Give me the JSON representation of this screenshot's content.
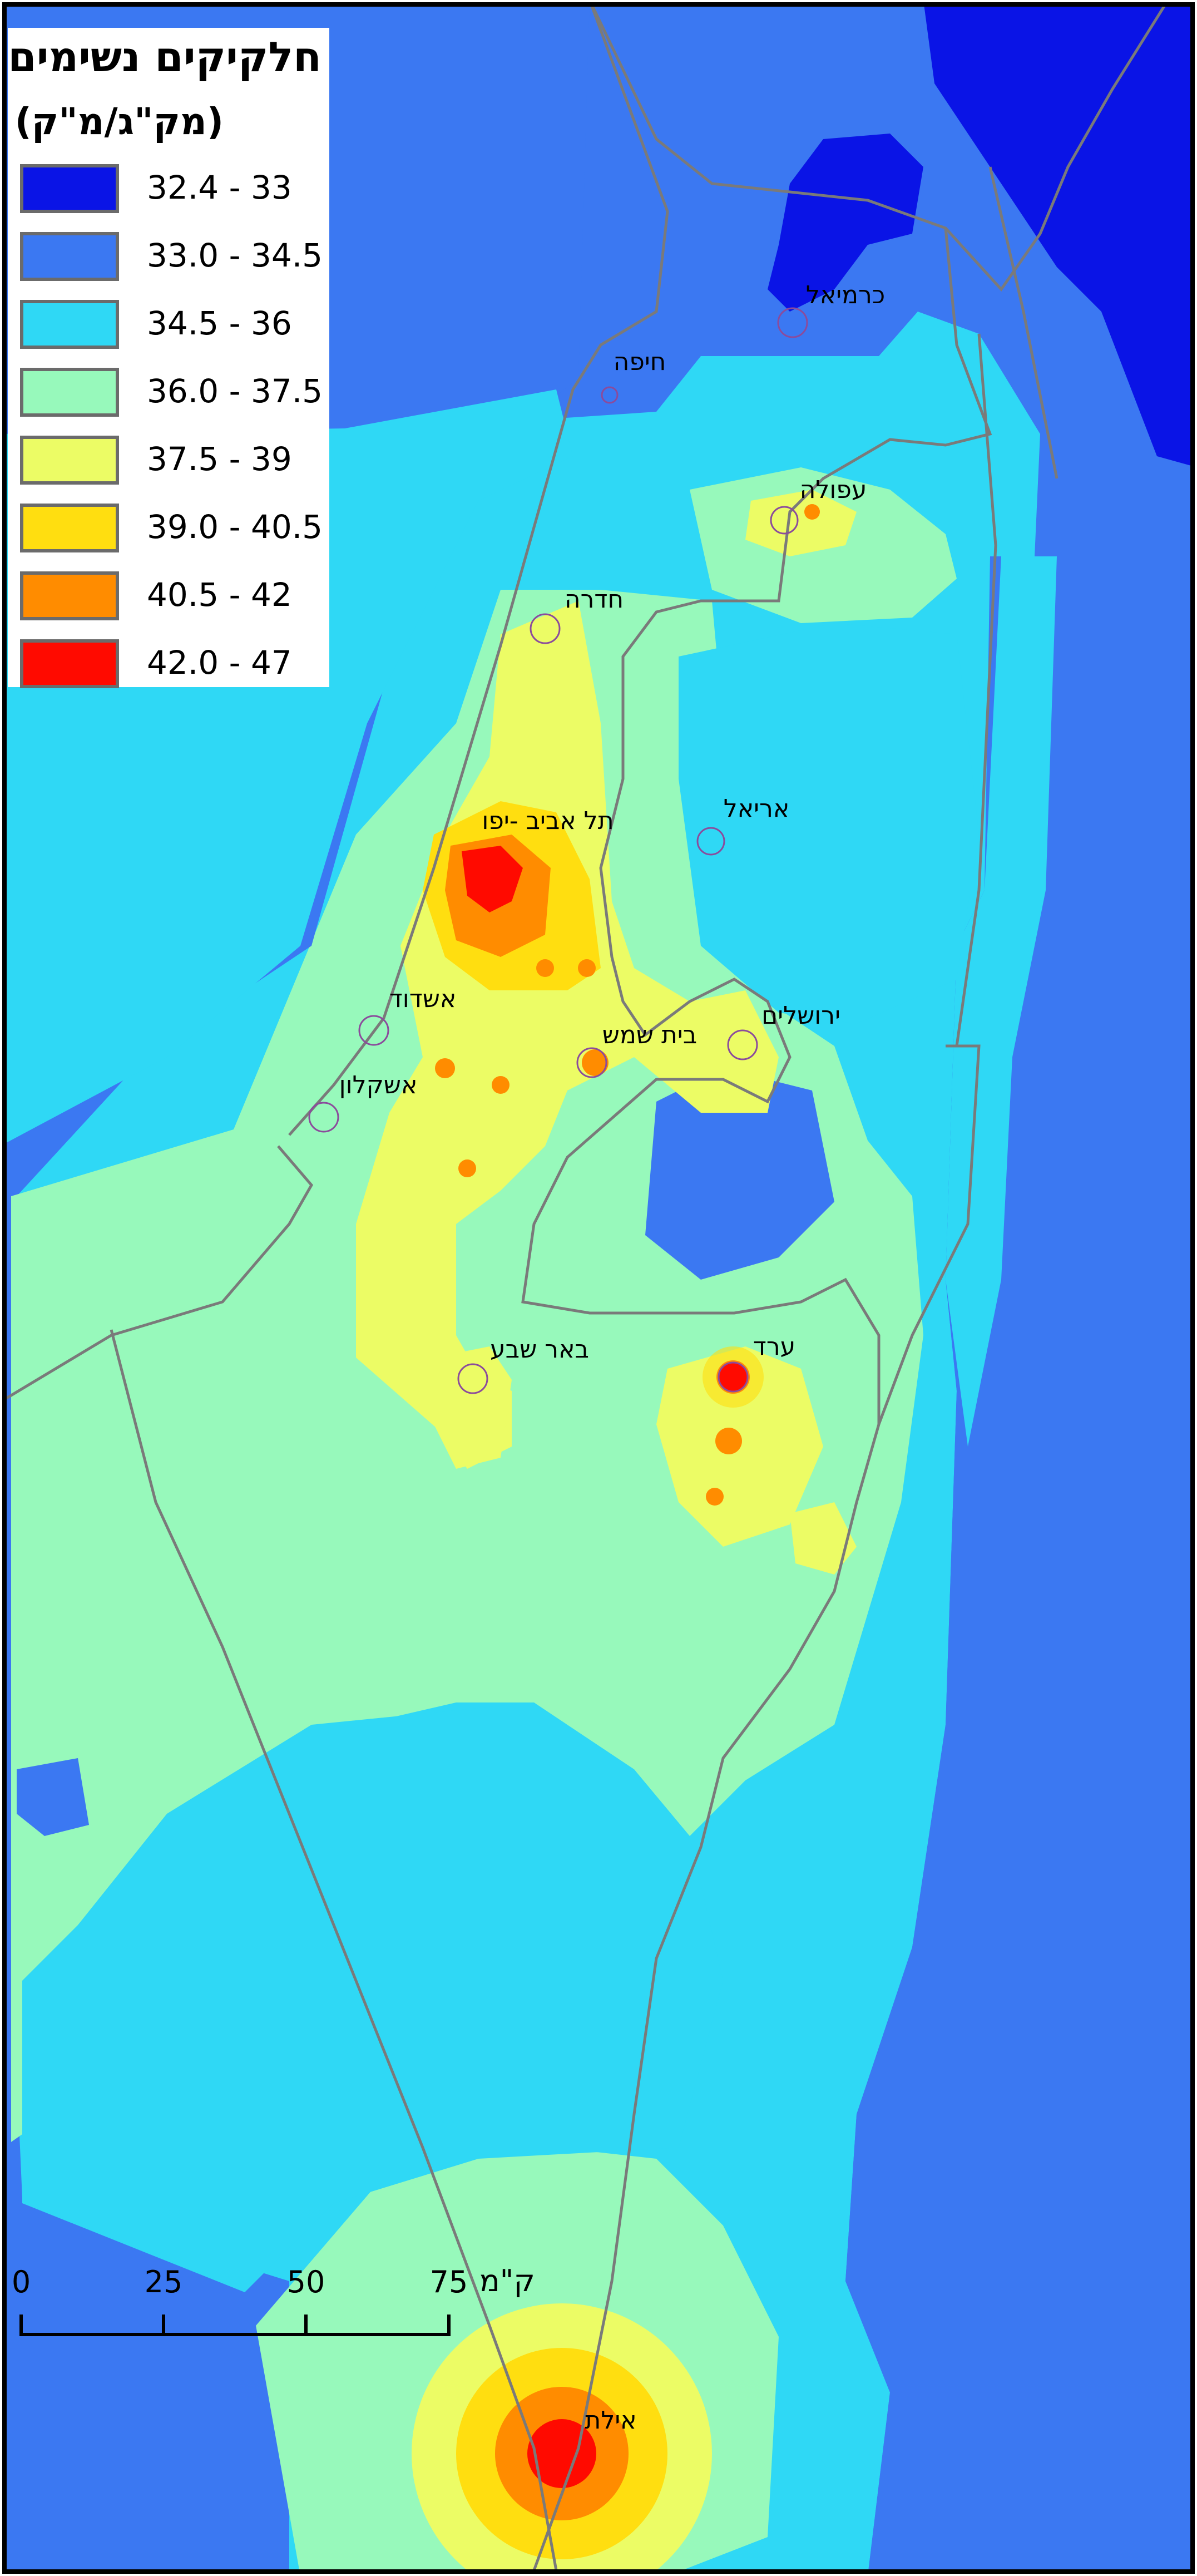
{
  "legend": {
    "title": "חלקיקים נשימים",
    "unit": "(מק\"ג/מ\"ק)",
    "items": [
      {
        "label": "32.4 - 33",
        "color": "#0a14e6"
      },
      {
        "label": "33.0 - 34.5",
        "color": "#3b78f2"
      },
      {
        "label": "34.5 - 36",
        "color": "#2fd8f5"
      },
      {
        "label": "36.0 - 37.5",
        "color": "#97f9bb"
      },
      {
        "label": "37.5 - 39",
        "color": "#ecfc65"
      },
      {
        "label": "39.0 - 40.5",
        "color": "#ffde10"
      },
      {
        "label": "40.5 - 42",
        "color": "#ff8c00"
      },
      {
        "label": "42.0 - 47",
        "color": "#ff0a00"
      }
    ]
  },
  "cities": {
    "karmiel": "כרמיאל",
    "haifa": "חיפה",
    "afula": "עפולה",
    "hadera": "חדרה",
    "tel_aviv": "תל אביב -יפו",
    "ariel": "אריאל",
    "ashdod": "אשדוד",
    "beit_shemesh": "בית שמש",
    "jerusalem": "ירושלים",
    "ashkelon": "אשקלון",
    "beer_sheva": "באר שבע",
    "arad": "ערד",
    "eilat": "אילת"
  },
  "scale_bar": {
    "ticks": [
      "0",
      "25",
      "50",
      "75"
    ],
    "unit": "ק\"מ"
  }
}
